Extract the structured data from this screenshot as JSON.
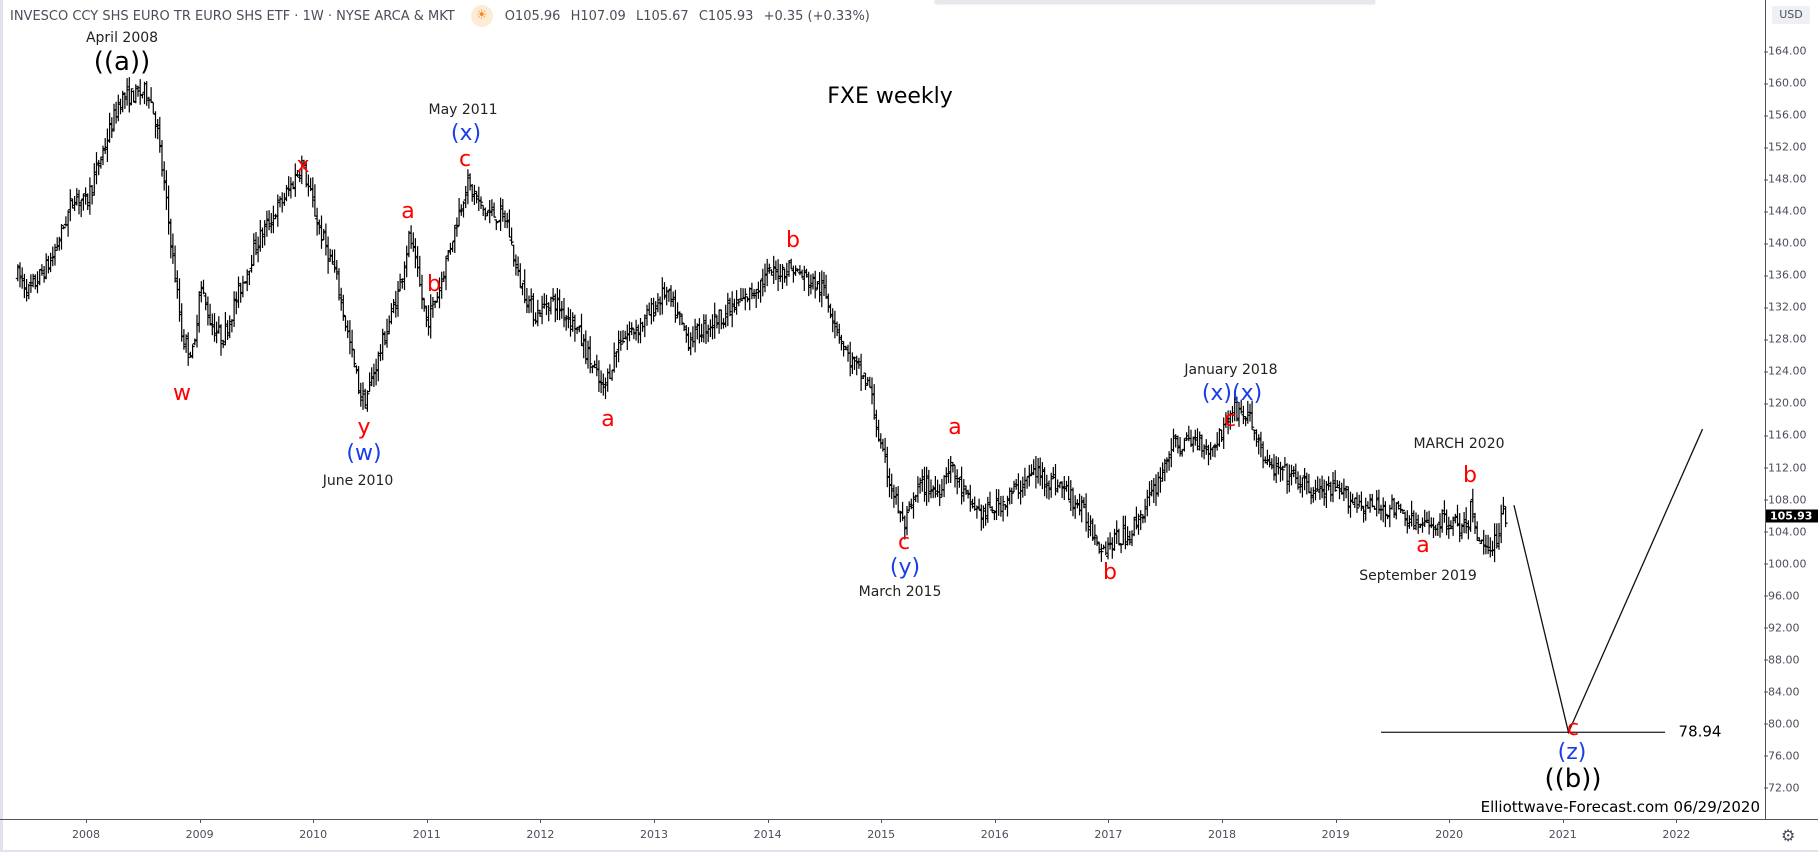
{
  "header": {
    "symbol": "INVESCO CCY SHS EURO TR EURO SHS ETF · 1W · NYSE ARCA & MKT",
    "market_status_icon": "sun-icon",
    "open": "O105.96",
    "high": "H107.09",
    "low": "L105.67",
    "close": "C105.93",
    "change": "+0.35 (+0.33%)"
  },
  "price_axis": {
    "currency": "USD",
    "current_price": "105.93",
    "settings_icon": "gear-icon"
  },
  "watermark": "Elliottwave-Forecast.com 06/29/2020",
  "chart_data": {
    "type": "ohlc",
    "title": "FXE weekly",
    "interval": "1W",
    "ylim": [
      70,
      166
    ],
    "xlim": [
      2007.4,
      2023.1
    ],
    "yticks": [
      "164.00",
      "160.00",
      "156.00",
      "152.00",
      "148.00",
      "144.00",
      "140.00",
      "136.00",
      "132.00",
      "128.00",
      "124.00",
      "120.00",
      "116.00",
      "112.00",
      "108.00",
      "104.00",
      "100.00",
      "96.00",
      "92.00",
      "88.00",
      "84.00",
      "80.00",
      "76.00",
      "72.00"
    ],
    "xticks": [
      "2008",
      "2009",
      "2010",
      "2011",
      "2012",
      "2013",
      "2014",
      "2015",
      "2016",
      "2017",
      "2018",
      "2019",
      "2020",
      "2021",
      "2022"
    ],
    "price_path_pivots": [
      [
        2007.4,
        136
      ],
      [
        2007.5,
        134
      ],
      [
        2007.7,
        138
      ],
      [
        2007.9,
        146
      ],
      [
        2008.0,
        145
      ],
      [
        2008.3,
        158
      ],
      [
        2008.55,
        159
      ],
      [
        2008.62,
        155
      ],
      [
        2008.75,
        140
      ],
      [
        2008.85,
        128
      ],
      [
        2008.95,
        126
      ],
      [
        2009.0,
        135
      ],
      [
        2009.1,
        130
      ],
      [
        2009.2,
        128
      ],
      [
        2009.5,
        140
      ],
      [
        2009.8,
        147
      ],
      [
        2009.9,
        150
      ],
      [
        2010.05,
        142
      ],
      [
        2010.2,
        136
      ],
      [
        2010.4,
        122
      ],
      [
        2010.45,
        120
      ],
      [
        2010.6,
        127
      ],
      [
        2010.75,
        134
      ],
      [
        2010.85,
        141
      ],
      [
        2011.0,
        130
      ],
      [
        2011.1,
        134
      ],
      [
        2011.35,
        147.5
      ],
      [
        2011.5,
        144
      ],
      [
        2011.7,
        143
      ],
      [
        2011.8,
        136
      ],
      [
        2011.95,
        131
      ],
      [
        2012.1,
        133
      ],
      [
        2012.3,
        130
      ],
      [
        2012.55,
        121.5
      ],
      [
        2012.7,
        128
      ],
      [
        2012.9,
        130
      ],
      [
        2013.1,
        134
      ],
      [
        2013.3,
        128
      ],
      [
        2013.5,
        130
      ],
      [
        2013.8,
        133
      ],
      [
        2014.0,
        136
      ],
      [
        2014.2,
        137
      ],
      [
        2014.5,
        134
      ],
      [
        2014.7,
        126
      ],
      [
        2014.9,
        122
      ],
      [
        2015.0,
        114
      ],
      [
        2015.2,
        104.5
      ],
      [
        2015.35,
        110
      ],
      [
        2015.5,
        109
      ],
      [
        2015.6,
        112.5
      ],
      [
        2015.75,
        108
      ],
      [
        2015.9,
        106
      ],
      [
        2016.1,
        108
      ],
      [
        2016.35,
        111.5
      ],
      [
        2016.6,
        109.5
      ],
      [
        2016.75,
        107
      ],
      [
        2016.95,
        102
      ],
      [
        2017.2,
        104
      ],
      [
        2017.4,
        109
      ],
      [
        2017.55,
        114.5
      ],
      [
        2017.8,
        115.5
      ],
      [
        2017.9,
        114
      ],
      [
        2018.1,
        119.5
      ],
      [
        2018.25,
        118
      ],
      [
        2018.4,
        112
      ],
      [
        2018.6,
        111
      ],
      [
        2018.8,
        109
      ],
      [
        2019.0,
        109
      ],
      [
        2019.3,
        107
      ],
      [
        2019.5,
        107
      ],
      [
        2019.75,
        104.5
      ],
      [
        2020.0,
        105.5
      ],
      [
        2020.15,
        104
      ],
      [
        2020.2,
        107.5
      ],
      [
        2020.25,
        102.5
      ],
      [
        2020.4,
        102.5
      ],
      [
        2020.47,
        106.5
      ],
      [
        2020.5,
        106
      ]
    ],
    "forecast_path": [
      [
        2020.57,
        107.3
      ],
      [
        2021.05,
        78.94
      ],
      [
        2022.23,
        116.8
      ]
    ],
    "target_level": {
      "value": 78.94,
      "label": "78.94",
      "from": 2019.4,
      "to": 2021.9
    },
    "annotations": [
      {
        "text": "April 2008",
        "kind": "date"
      },
      {
        "text": "((a))",
        "kind": "degree-black"
      },
      {
        "text": "x",
        "kind": "red"
      },
      {
        "text": "w",
        "kind": "red"
      },
      {
        "text": "y",
        "kind": "red"
      },
      {
        "text": "(w)",
        "kind": "blue"
      },
      {
        "text": "June 2010",
        "kind": "date"
      },
      {
        "text": "May 2011",
        "kind": "date"
      },
      {
        "text": "(x)",
        "kind": "blue"
      },
      {
        "text": "c",
        "kind": "red"
      },
      {
        "text": "a",
        "kind": "red"
      },
      {
        "text": "b",
        "kind": "red"
      },
      {
        "text": "b",
        "kind": "red"
      },
      {
        "text": "a",
        "kind": "red"
      },
      {
        "text": "a",
        "kind": "red"
      },
      {
        "text": "c",
        "kind": "red"
      },
      {
        "text": "(y)",
        "kind": "blue"
      },
      {
        "text": "March 2015",
        "kind": "date"
      },
      {
        "text": "b",
        "kind": "red"
      },
      {
        "text": "January 2018",
        "kind": "date"
      },
      {
        "text": "(x)(x)",
        "kind": "blue"
      },
      {
        "text": "c",
        "kind": "red"
      },
      {
        "text": "MARCH 2020",
        "kind": "date"
      },
      {
        "text": "b",
        "kind": "red"
      },
      {
        "text": "a",
        "kind": "red"
      },
      {
        "text": "September 2019",
        "kind": "date"
      },
      {
        "text": "c",
        "kind": "red"
      },
      {
        "text": "(z)",
        "kind": "blue"
      },
      {
        "text": "((b))",
        "kind": "degree-black"
      }
    ],
    "colors": {
      "bars": "#000000",
      "wave_minor": "#ff0000",
      "wave_intermediate": "#1a3ee6",
      "wave_primary": "#000000"
    },
    "grid": false
  }
}
